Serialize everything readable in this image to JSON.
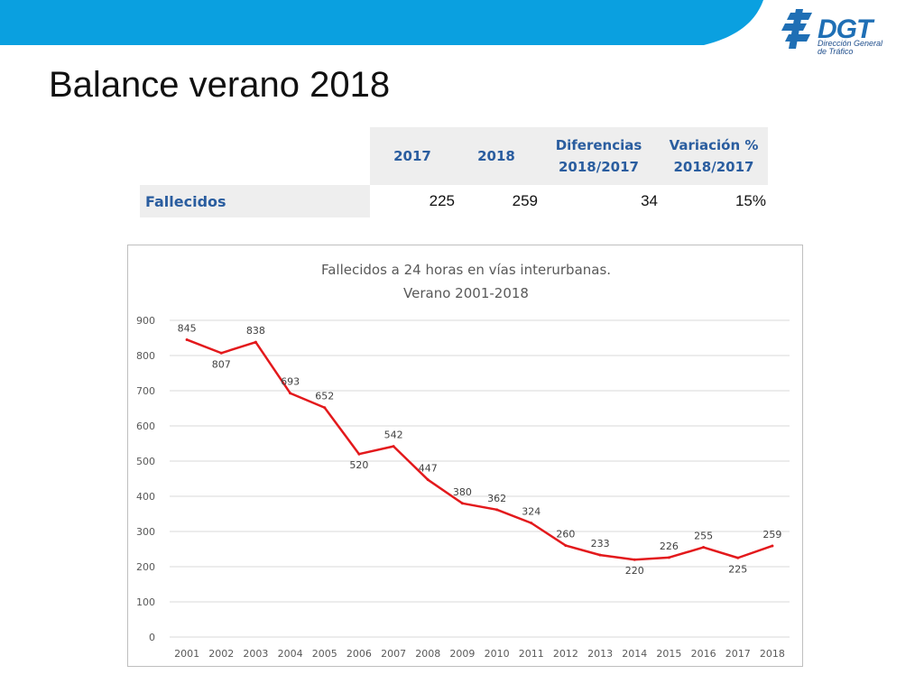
{
  "header": {
    "band_color": "#0aa0e0",
    "logo": {
      "name": "DGT",
      "subtitle": "Dirección General de Tráfico"
    }
  },
  "page_title": "Balance verano 2018",
  "summary_table": {
    "headers": [
      "2017",
      "2018",
      "Diferencias\n2018/2017",
      "Variación %\n2018/2017"
    ],
    "row_label": "Fallecidos",
    "values": [
      "225",
      "259",
      "34",
      "15%"
    ]
  },
  "chart_data": {
    "type": "line",
    "title": "Fallecidos a 24 horas en vías interurbanas.",
    "subtitle": "Verano 2001-2018",
    "x": [
      "2001",
      "2002",
      "2003",
      "2004",
      "2005",
      "2006",
      "2007",
      "2008",
      "2009",
      "2010",
      "2011",
      "2012",
      "2013",
      "2014",
      "2015",
      "2016",
      "2017",
      "2018"
    ],
    "series": [
      {
        "values": [
          845,
          807,
          838,
          693,
          652,
          520,
          542,
          447,
          380,
          362,
          324,
          260,
          233,
          220,
          226,
          255,
          225,
          259
        ],
        "color": "#e3191c"
      }
    ],
    "ylim": [
      0,
      900
    ],
    "yticks": [
      "0",
      "100",
      "200",
      "300",
      "400",
      "500",
      "600",
      "700",
      "800",
      "900"
    ],
    "grid": true,
    "data_labels": true
  }
}
